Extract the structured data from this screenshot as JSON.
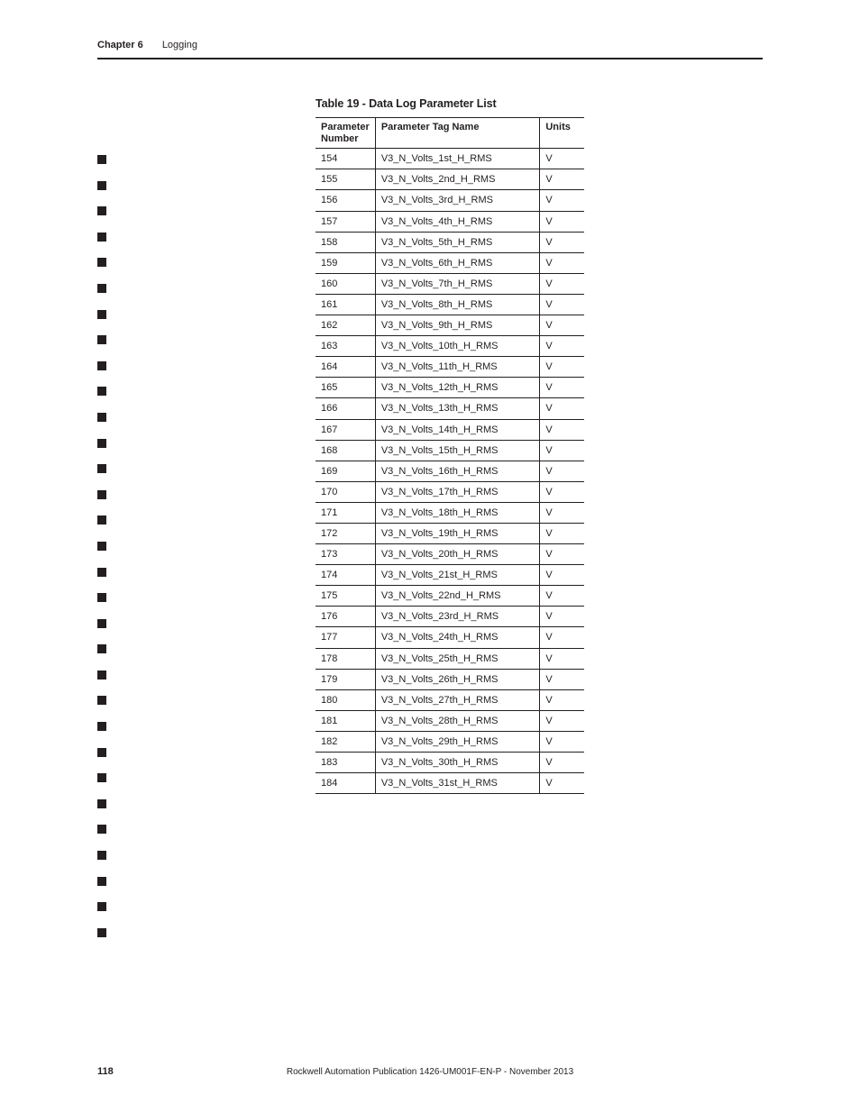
{
  "header": {
    "chapter_label": "Chapter 6",
    "section_label": "Logging"
  },
  "table": {
    "title": "Table 19 - Data Log Parameter List",
    "columns": {
      "number": "Parameter Number",
      "tag": "Parameter Tag Name",
      "units": "Units"
    },
    "rows": [
      {
        "n": "154",
        "tag": "V3_N_Volts_1st_H_RMS",
        "u": "V"
      },
      {
        "n": "155",
        "tag": "V3_N_Volts_2nd_H_RMS",
        "u": "V"
      },
      {
        "n": "156",
        "tag": "V3_N_Volts_3rd_H_RMS",
        "u": "V"
      },
      {
        "n": "157",
        "tag": "V3_N_Volts_4th_H_RMS",
        "u": "V"
      },
      {
        "n": "158",
        "tag": "V3_N_Volts_5th_H_RMS",
        "u": "V"
      },
      {
        "n": "159",
        "tag": "V3_N_Volts_6th_H_RMS",
        "u": "V"
      },
      {
        "n": "160",
        "tag": "V3_N_Volts_7th_H_RMS",
        "u": "V"
      },
      {
        "n": "161",
        "tag": "V3_N_Volts_8th_H_RMS",
        "u": "V"
      },
      {
        "n": "162",
        "tag": "V3_N_Volts_9th_H_RMS",
        "u": "V"
      },
      {
        "n": "163",
        "tag": "V3_N_Volts_10th_H_RMS",
        "u": "V"
      },
      {
        "n": "164",
        "tag": "V3_N_Volts_11th_H_RMS",
        "u": "V"
      },
      {
        "n": "165",
        "tag": "V3_N_Volts_12th_H_RMS",
        "u": "V"
      },
      {
        "n": "166",
        "tag": "V3_N_Volts_13th_H_RMS",
        "u": "V"
      },
      {
        "n": "167",
        "tag": "V3_N_Volts_14th_H_RMS",
        "u": "V"
      },
      {
        "n": "168",
        "tag": "V3_N_Volts_15th_H_RMS",
        "u": "V"
      },
      {
        "n": "169",
        "tag": "V3_N_Volts_16th_H_RMS",
        "u": "V"
      },
      {
        "n": "170",
        "tag": "V3_N_Volts_17th_H_RMS",
        "u": "V"
      },
      {
        "n": "171",
        "tag": "V3_N_Volts_18th_H_RMS",
        "u": "V"
      },
      {
        "n": "172",
        "tag": "V3_N_Volts_19th_H_RMS",
        "u": "V"
      },
      {
        "n": "173",
        "tag": "V3_N_Volts_20th_H_RMS",
        "u": "V"
      },
      {
        "n": "174",
        "tag": "V3_N_Volts_21st_H_RMS",
        "u": "V"
      },
      {
        "n": "175",
        "tag": "V3_N_Volts_22nd_H_RMS",
        "u": "V"
      },
      {
        "n": "176",
        "tag": "V3_N_Volts_23rd_H_RMS",
        "u": "V"
      },
      {
        "n": "177",
        "tag": "V3_N_Volts_24th_H_RMS",
        "u": "V"
      },
      {
        "n": "178",
        "tag": "V3_N_Volts_25th_H_RMS",
        "u": "V"
      },
      {
        "n": "179",
        "tag": "V3_N_Volts_26th_H_RMS",
        "u": "V"
      },
      {
        "n": "180",
        "tag": "V3_N_Volts_27th_H_RMS",
        "u": "V"
      },
      {
        "n": "181",
        "tag": "V3_N_Volts_28th_H_RMS",
        "u": "V"
      },
      {
        "n": "182",
        "tag": "V3_N_Volts_29th_H_RMS",
        "u": "V"
      },
      {
        "n": "183",
        "tag": "V3_N_Volts_30th_H_RMS",
        "u": "V"
      },
      {
        "n": "184",
        "tag": "V3_N_Volts_31st_H_RMS",
        "u": "V"
      }
    ]
  },
  "footer": {
    "publication": "Rockwell Automation Publication 1426-UM001F-EN-P - November 2013",
    "page_number": "118"
  },
  "side_bullet_count": 31
}
